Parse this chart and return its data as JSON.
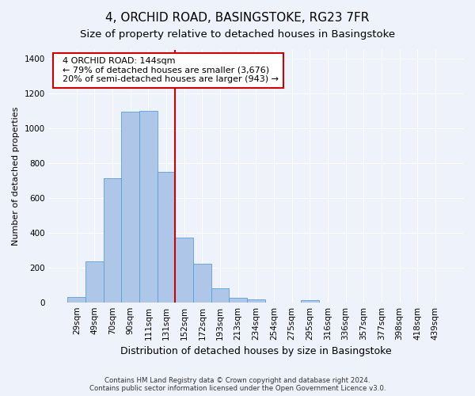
{
  "title": "4, ORCHID ROAD, BASINGSTOKE, RG23 7FR",
  "subtitle": "Size of property relative to detached houses in Basingstoke",
  "xlabel": "Distribution of detached houses by size in Basingstoke",
  "ylabel": "Number of detached properties",
  "footer_line1": "Contains HM Land Registry data © Crown copyright and database right 2024.",
  "footer_line2": "Contains public sector information licensed under the Open Government Licence v3.0.",
  "bar_labels": [
    "29sqm",
    "49sqm",
    "70sqm",
    "90sqm",
    "111sqm",
    "131sqm",
    "152sqm",
    "172sqm",
    "193sqm",
    "213sqm",
    "234sqm",
    "254sqm",
    "275sqm",
    "295sqm",
    "316sqm",
    "336sqm",
    "357sqm",
    "377sqm",
    "398sqm",
    "418sqm",
    "439sqm"
  ],
  "bar_values": [
    30,
    235,
    710,
    1095,
    1100,
    750,
    370,
    220,
    80,
    28,
    18,
    0,
    0,
    10,
    0,
    0,
    0,
    0,
    0,
    0,
    0
  ],
  "bar_color": "#aec6e8",
  "bar_edgecolor": "#5a9fd4",
  "annotation_text": "  4 ORCHID ROAD: 144sqm\n  ← 79% of detached houses are smaller (3,676)\n  20% of semi-detached houses are larger (943) →",
  "vline_x": 5.5,
  "vline_color": "#cc0000",
  "annotation_box_edgecolor": "#cc0000",
  "ylim": [
    0,
    1450
  ],
  "yticks": [
    0,
    200,
    400,
    600,
    800,
    1000,
    1200,
    1400
  ],
  "background_color": "#eef2fb",
  "plot_background": "#eef2fb",
  "grid_color": "#ffffff",
  "title_fontsize": 11,
  "subtitle_fontsize": 9.5,
  "annotation_fontsize": 8,
  "ylabel_fontsize": 8,
  "xlabel_fontsize": 9,
  "tick_fontsize": 7.5
}
